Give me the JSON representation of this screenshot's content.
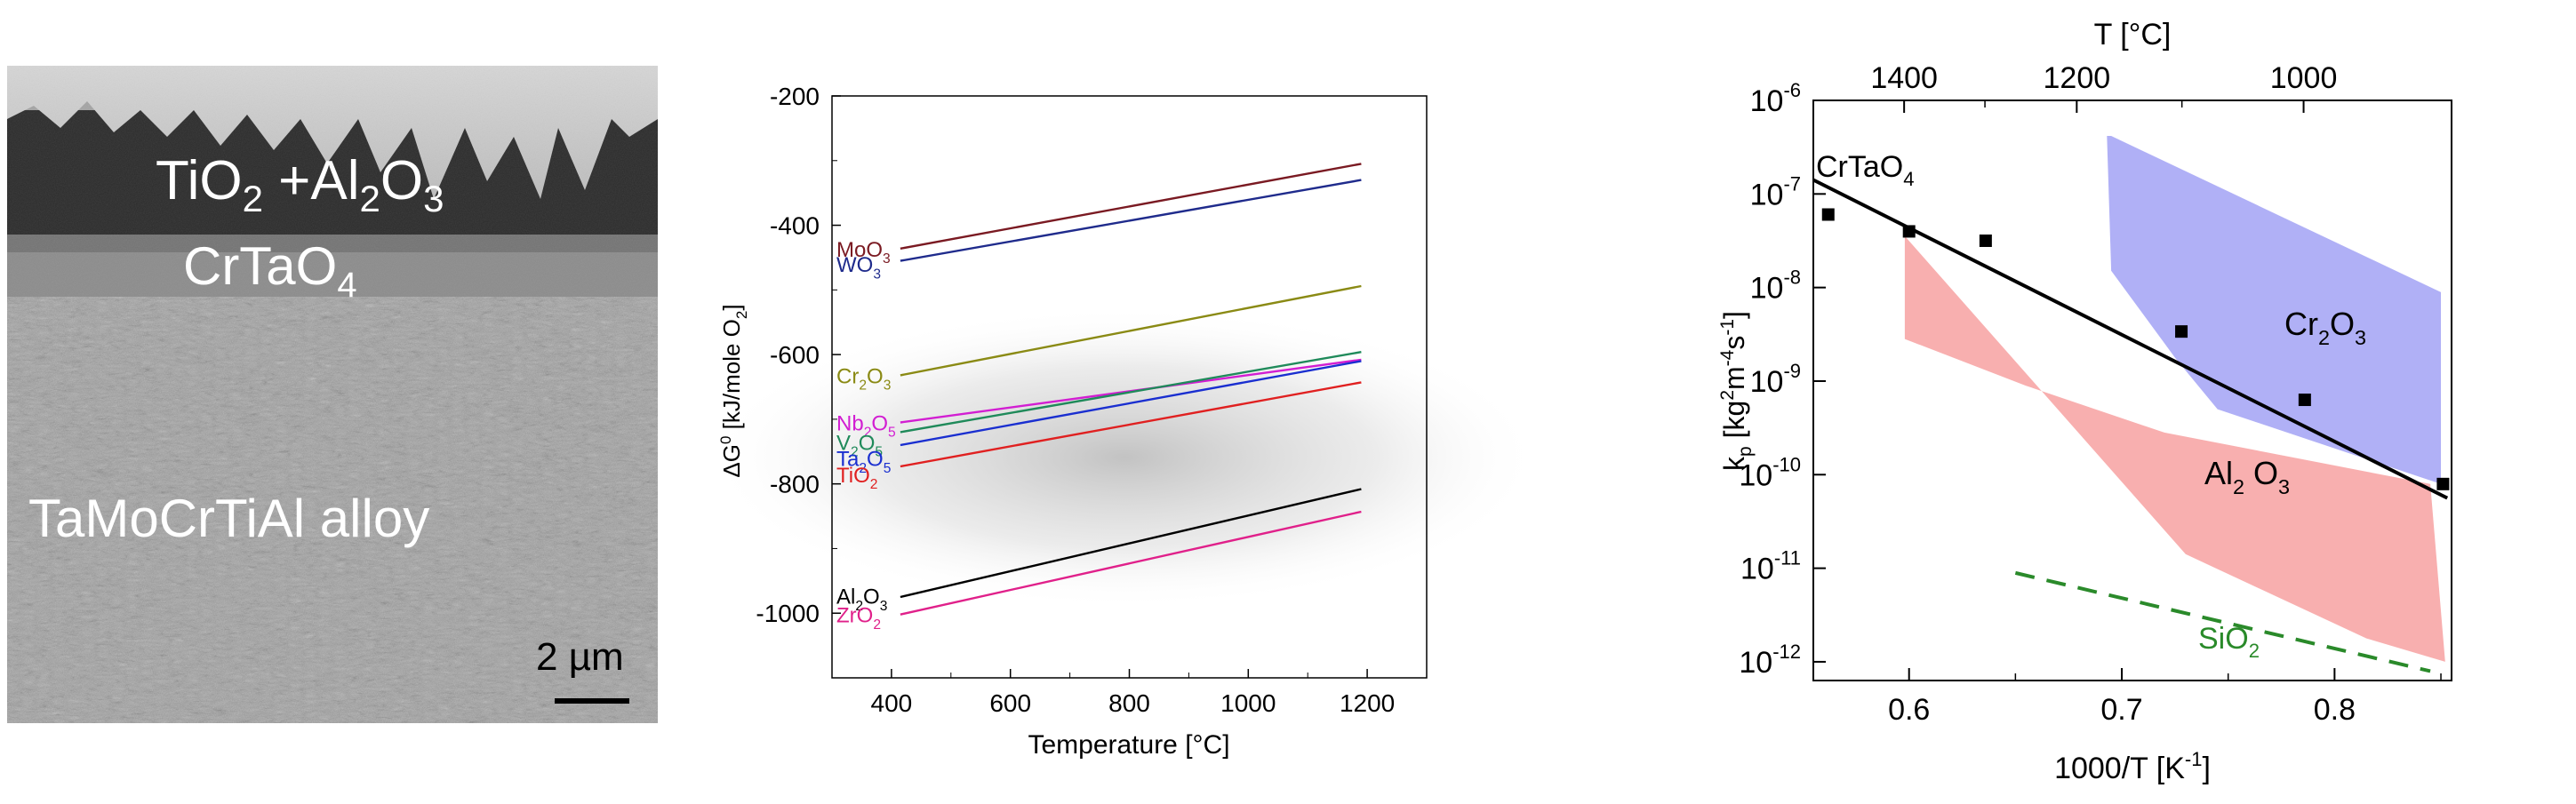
{
  "sem_image": {
    "labels": {
      "oxide": [
        "TiO",
        "2",
        " +Al",
        "2",
        "O",
        "3"
      ],
      "crtao4": [
        "CrTaO",
        "4"
      ],
      "alloy": "TaMoCrTiAl alloy"
    },
    "scale_bar_label": "2 µm"
  },
  "chart_data": [
    {
      "type": "line",
      "title": "",
      "xlabel": "Temperature [°C]",
      "ylabel_parts": [
        "ΔG",
        "0",
        " [kJ/mole O",
        "2",
        "]"
      ],
      "xlim": [
        300,
        1300
      ],
      "ylim": [
        -1100,
        -200
      ],
      "xticks": [
        400,
        600,
        800,
        1000,
        1200
      ],
      "yticks": [
        -200,
        -400,
        -600,
        -800,
        -1000
      ],
      "grid": false,
      "background_band": "grey gradient",
      "series": [
        {
          "name_parts": [
            "MoO",
            "3"
          ],
          "color": "#7a1a22",
          "x": [
            415,
            1190
          ],
          "y": [
            -436,
            -305
          ]
        },
        {
          "name_parts": [
            "WO",
            "3"
          ],
          "color": "#1f2b8c",
          "x": [
            415,
            1190
          ],
          "y": [
            -455,
            -330
          ]
        },
        {
          "name_parts": [
            "Cr",
            "2",
            "O",
            "3"
          ],
          "color": "#8a8a14",
          "x": [
            415,
            1190
          ],
          "y": [
            -632,
            -494
          ]
        },
        {
          "name_parts": [
            "Nb",
            "2",
            "O",
            "5"
          ],
          "color": "#d21ed2",
          "x": [
            415,
            1190
          ],
          "y": [
            -705,
            -608
          ]
        },
        {
          "name_parts": [
            "V",
            "2",
            "O",
            "5"
          ],
          "color": "#1f8a5a",
          "x": [
            415,
            1190
          ],
          "y": [
            -720,
            -596
          ]
        },
        {
          "name_parts": [
            "Ta",
            "2",
            "O",
            "5"
          ],
          "color": "#1a2fd0",
          "x": [
            415,
            1190
          ],
          "y": [
            -740,
            -610
          ]
        },
        {
          "name_parts": [
            "TiO",
            "2"
          ],
          "color": "#e02020",
          "x": [
            415,
            1190
          ],
          "y": [
            -773,
            -643
          ]
        },
        {
          "name_parts": [
            "Al",
            "2",
            "O",
            "3"
          ],
          "color": "#000000",
          "x": [
            415,
            1190
          ],
          "y": [
            -975,
            -808
          ]
        },
        {
          "name_parts": [
            "ZrO",
            "2"
          ],
          "color": "#e0208a",
          "x": [
            415,
            1190
          ],
          "y": [
            -1002,
            -843
          ]
        }
      ]
    },
    {
      "type": "scatter",
      "title": "",
      "xlabel_parts": [
        "1000/T [K",
        "-1",
        "]"
      ],
      "ylabel_parts": [
        "k",
        "p",
        " [kg",
        "2",
        "m",
        "-4",
        "s",
        "-1",
        "]"
      ],
      "top_xlabel": "T [°C]",
      "yscale": "log",
      "xlim": [
        0.555,
        0.855
      ],
      "ylim_exponent": [
        -12.2,
        -6
      ],
      "xticks": [
        0.6,
        0.7,
        0.8
      ],
      "yticks_exponent": [
        -6,
        -7,
        -8,
        -9,
        -10,
        -11,
        -12
      ],
      "ytick_base": "10",
      "top_xticks": [
        1400,
        1200,
        1000
      ],
      "grid": false,
      "points": [
        {
          "x": 0.562,
          "log_y": -7.22
        },
        {
          "x": 0.6,
          "log_y": -7.4
        },
        {
          "x": 0.636,
          "log_y": -7.5
        },
        {
          "x": 0.728,
          "log_y": -8.47
        },
        {
          "x": 0.786,
          "log_y": -9.2
        },
        {
          "x": 0.851,
          "log_y": -10.1
        }
      ],
      "fit_line": {
        "name_parts": [
          "CrTaO",
          "4"
        ],
        "color": "#000000",
        "x": [
          0.555,
          0.853
        ],
        "log_y": [
          -6.85,
          -10.25
        ]
      },
      "regions": [
        {
          "name_parts": [
            "Cr",
            "2",
            "O",
            "3"
          ],
          "color": "#8f8ff2",
          "x": [
            0.693,
            0.695,
            0.725,
            0.745,
            0.85,
            0.85,
            0.695
          ],
          "log_y": [
            -6.38,
            -7.82,
            -8.75,
            -9.3,
            -10.1,
            -8.05,
            -6.38
          ]
        },
        {
          "name_parts": [
            "Al",
            "2",
            " O",
            "3"
          ],
          "color": "#f7a1a1",
          "x": [
            0.598,
            0.598,
            0.655,
            0.72,
            0.845,
            0.852,
            0.815,
            0.73,
            0.598
          ],
          "log_y": [
            -7.45,
            -8.55,
            -9.05,
            -9.55,
            -10.1,
            -12.0,
            -11.75,
            -10.85,
            -7.45
          ]
        }
      ],
      "dashed_line": {
        "name": "SiO2",
        "label_parts": [
          "SiO",
          "2"
        ],
        "color": "#2a8a2a",
        "x": [
          0.65,
          0.845
        ],
        "log_y": [
          -11.05,
          -12.1
        ]
      }
    }
  ]
}
